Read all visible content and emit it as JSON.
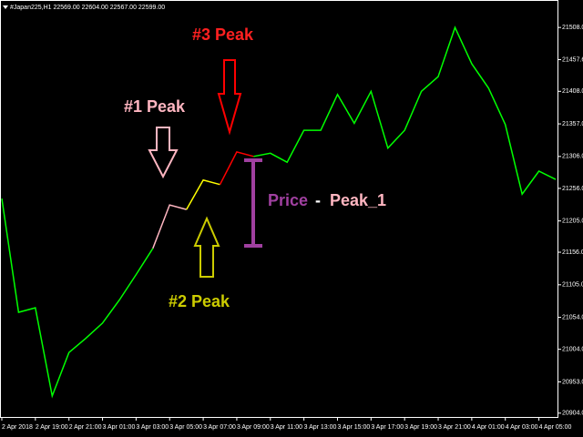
{
  "chart_data": {
    "type": "line",
    "header": "#Japan225,H1  22569.00 22604.00 22567.00 22599.00",
    "categories": [
      "2 Apr 2018",
      null,
      "2 Apr 19:00",
      null,
      "2 Apr 21:00",
      null,
      "3 Apr 01:00",
      null,
      "3 Apr 03:00",
      null,
      "3 Apr 05:00",
      null,
      "3 Apr 07:00",
      null,
      "3 Apr 09:00",
      null,
      "3 Apr 11:00",
      null,
      "3 Apr 13:00",
      null,
      "3 Apr 15:00",
      null,
      "3 Apr 17:00",
      null,
      "3 Apr 19:00",
      null,
      "3 Apr 21:00",
      null,
      "4 Apr 01:00",
      null,
      "4 Apr 03:00",
      null,
      "4 Apr 05:00",
      null
    ],
    "series": [
      {
        "color": "#00ff00",
        "values": [
          21240,
          21062,
          21069,
          20931,
          20999,
          21021,
          21045,
          21081,
          21121,
          21162,
          null,
          null,
          null,
          null,
          null,
          null,
          null,
          null,
          null,
          null,
          null,
          null,
          null,
          null,
          null,
          null,
          null,
          null,
          null,
          null,
          null,
          null,
          null,
          null
        ]
      },
      {
        "color": "#ffb6c1",
        "values": [
          null,
          null,
          null,
          null,
          null,
          null,
          null,
          null,
          null,
          21162,
          21230,
          21223,
          null,
          null,
          null,
          null,
          null,
          null,
          null,
          null,
          null,
          null,
          null,
          null,
          null,
          null,
          null,
          null,
          null,
          null,
          null,
          null,
          null,
          null
        ]
      },
      {
        "color": "#ffff00",
        "values": [
          null,
          null,
          null,
          null,
          null,
          null,
          null,
          null,
          null,
          null,
          null,
          21223,
          21269,
          21262,
          null,
          null,
          null,
          null,
          null,
          null,
          null,
          null,
          null,
          null,
          null,
          null,
          null,
          null,
          null,
          null,
          null,
          null,
          null,
          null
        ]
      },
      {
        "color": "#ff0000",
        "values": [
          null,
          null,
          null,
          null,
          null,
          null,
          null,
          null,
          null,
          null,
          null,
          null,
          null,
          21262,
          21313,
          21306,
          null,
          null,
          null,
          null,
          null,
          null,
          null,
          null,
          null,
          null,
          null,
          null,
          null,
          null,
          null,
          null,
          null,
          null
        ]
      },
      {
        "color": "#00ff00",
        "values": [
          null,
          null,
          null,
          null,
          null,
          null,
          null,
          null,
          null,
          null,
          null,
          null,
          null,
          null,
          null,
          21306,
          21311,
          21297,
          21347,
          21347,
          21403,
          21358,
          21408,
          21319,
          21347,
          21408,
          21431,
          21508,
          21451,
          21413,
          21356,
          21247,
          21283,
          21270
        ]
      }
    ],
    "ylim": [
      20898,
      21551
    ],
    "yticks": [
      {
        "value": 21508,
        "label": "21508.00"
      },
      {
        "value": 21457.6,
        "label": "21457.60"
      },
      {
        "value": 21408,
        "label": "21408.00"
      },
      {
        "value": 21357,
        "label": "21357.00"
      },
      {
        "value": 21306,
        "label": "21306.00"
      },
      {
        "value": 21256,
        "label": "21256.00"
      },
      {
        "value": 21205,
        "label": "21205.00"
      },
      {
        "value": 21156,
        "label": "21156.00"
      },
      {
        "value": 21105,
        "label": "21105.00"
      },
      {
        "value": 21054,
        "label": "21054.00"
      },
      {
        "value": 21004,
        "label": "21004.00"
      },
      {
        "value": 20953,
        "label": "20953.00"
      },
      {
        "value": 20904,
        "label": "20904.00"
      }
    ],
    "annotations": [
      "#3 Peak",
      "#1 Peak",
      "#2 Peak"
    ],
    "measure_label": [
      "Price",
      "-",
      "Peak_1"
    ]
  }
}
